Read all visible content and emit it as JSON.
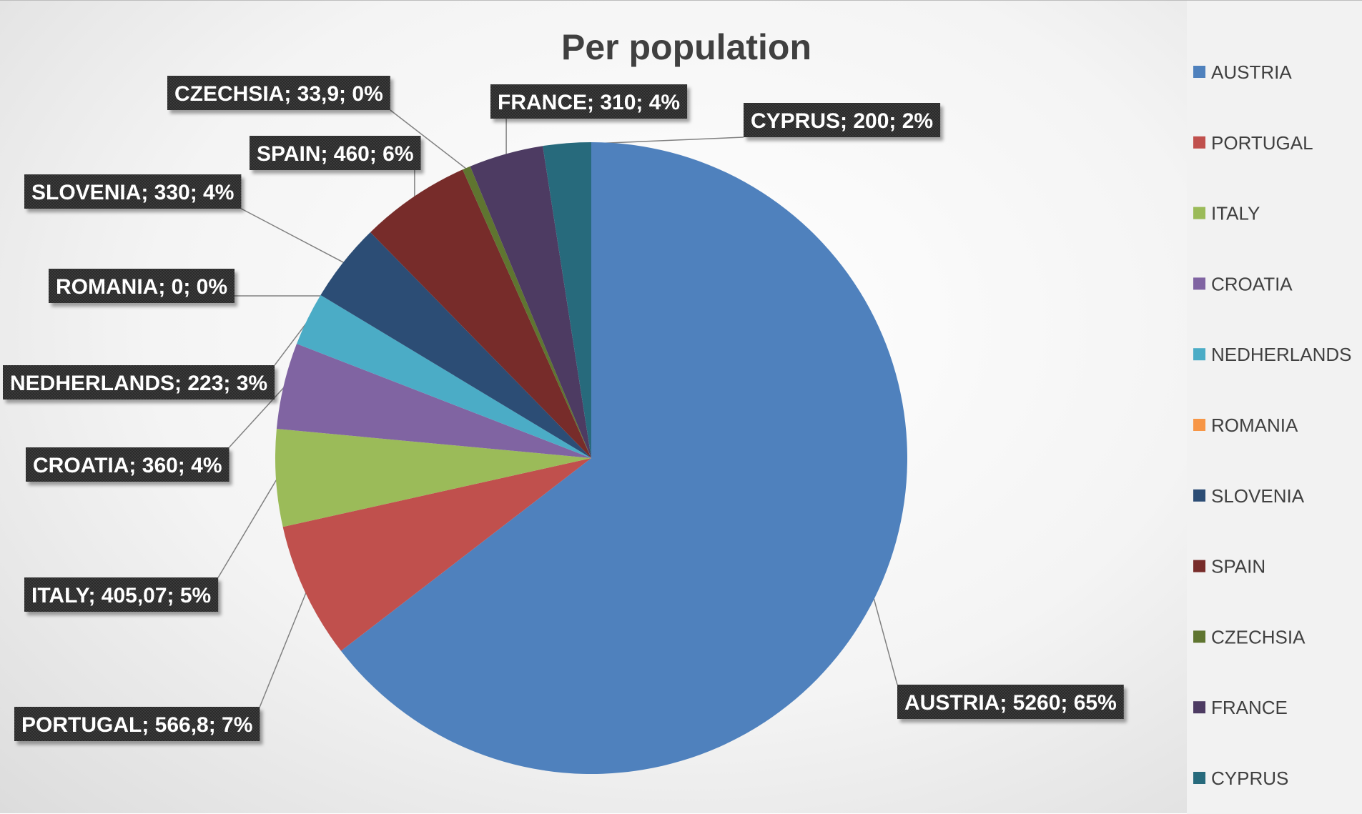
{
  "chart_data": {
    "type": "pie",
    "title": "Per population",
    "slices": [
      {
        "name": "AUSTRIA",
        "value": 5260,
        "value_text": "5260",
        "percent": "65%",
        "color": "#4f81bd"
      },
      {
        "name": "PORTUGAL",
        "value": 566.8,
        "value_text": "566,8",
        "percent": "7%",
        "color": "#c0504d"
      },
      {
        "name": "ITALY",
        "value": 405.07,
        "value_text": "405,07",
        "percent": "5%",
        "color": "#9bbb59"
      },
      {
        "name": "CROATIA",
        "value": 360,
        "value_text": "360",
        "percent": "4%",
        "color": "#8064a2"
      },
      {
        "name": "NEDHERLANDS",
        "value": 223,
        "value_text": "223",
        "percent": "3%",
        "color": "#4bacc6"
      },
      {
        "name": "ROMANIA",
        "value": 0,
        "value_text": "0",
        "percent": "0%",
        "color": "#f79646"
      },
      {
        "name": "SLOVENIA",
        "value": 330,
        "value_text": "330",
        "percent": "4%",
        "color": "#2c4d75"
      },
      {
        "name": "SPAIN",
        "value": 460,
        "value_text": "460",
        "percent": "6%",
        "color": "#772c2a"
      },
      {
        "name": "CZECHSIA",
        "value": 33.9,
        "value_text": "33,9",
        "percent": "0%",
        "color": "#5f7530"
      },
      {
        "name": "FRANCE",
        "value": 310,
        "value_text": "310",
        "percent": "4%",
        "color": "#4d3b62"
      },
      {
        "name": "CYPRUS",
        "value": 200,
        "value_text": "200",
        "percent": "2%",
        "color": "#276a7c"
      }
    ],
    "label_separator": "; ",
    "start_angle": "12 o'clock",
    "direction": "clockwise",
    "legend_position": "right",
    "label_style": "dark callout boxes with leader lines"
  }
}
